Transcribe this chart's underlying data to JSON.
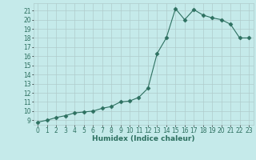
{
  "x": [
    0,
    1,
    2,
    3,
    4,
    5,
    6,
    7,
    8,
    9,
    10,
    11,
    12,
    13,
    14,
    15,
    16,
    17,
    18,
    19,
    20,
    21,
    22,
    23
  ],
  "y": [
    8.8,
    9.0,
    9.3,
    9.5,
    9.8,
    9.9,
    10.0,
    10.3,
    10.5,
    11.0,
    11.1,
    11.5,
    12.5,
    16.3,
    18.0,
    21.2,
    20.0,
    21.1,
    20.5,
    20.2,
    20.0,
    19.5,
    18.0,
    18.0
  ],
  "xlabel": "Humidex (Indice chaleur)",
  "line_color": "#2d7060",
  "marker": "D",
  "marker_size": 2.5,
  "bg_color": "#c5eaea",
  "grid_color": "#b0cccc",
  "xlim": [
    -0.5,
    23.5
  ],
  "ylim": [
    8.5,
    21.8
  ],
  "yticks": [
    9,
    10,
    11,
    12,
    13,
    14,
    15,
    16,
    17,
    18,
    19,
    20,
    21
  ],
  "xticks": [
    0,
    1,
    2,
    3,
    4,
    5,
    6,
    7,
    8,
    9,
    10,
    11,
    12,
    13,
    14,
    15,
    16,
    17,
    18,
    19,
    20,
    21,
    22,
    23
  ],
  "label_fontsize": 6.5,
  "tick_fontsize": 5.5
}
